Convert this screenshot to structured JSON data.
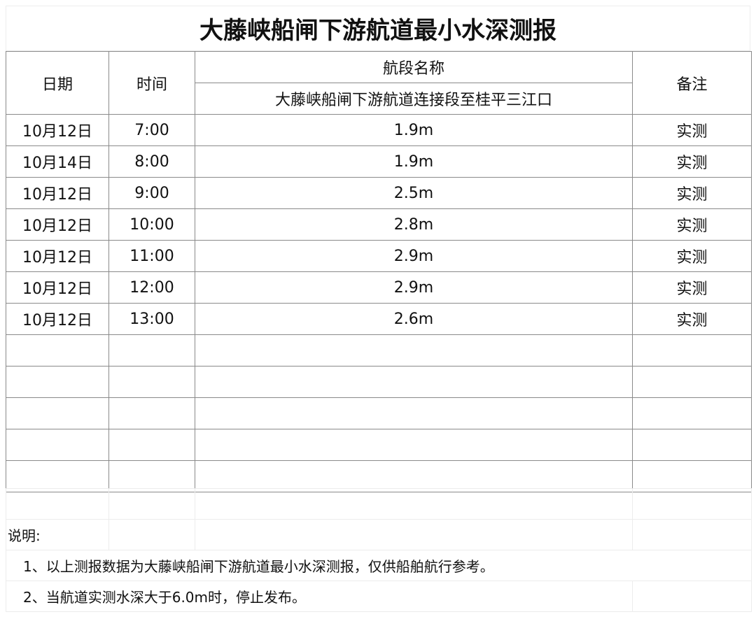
{
  "title": "大藤峡船闸下游航道最小水深测报",
  "header": {
    "date": "日期",
    "time": "时间",
    "section_name": "航段名称",
    "section_value": "大藤峡船闸下游航道连接段至桂平三江口",
    "remark": "备注"
  },
  "rows": [
    {
      "date": "10月12日",
      "time": "7:00",
      "depth": "1.9m",
      "remark": "实测"
    },
    {
      "date": "10月14日",
      "time": "8:00",
      "depth": "1.9m",
      "remark": "实测"
    },
    {
      "date": "10月12日",
      "time": "9:00",
      "depth": "2.5m",
      "remark": "实测"
    },
    {
      "date": "10月12日",
      "time": "10:00",
      "depth": "2.8m",
      "remark": "实测"
    },
    {
      "date": "10月12日",
      "time": "11:00",
      "depth": "2.9m",
      "remark": "实测"
    },
    {
      "date": "10月12日",
      "time": "12:00",
      "depth": "2.9m",
      "remark": "实测"
    },
    {
      "date": "10月12日",
      "time": "13:00",
      "depth": "2.6m",
      "remark": "实测"
    }
  ],
  "notes": {
    "heading": "说明:",
    "items": [
      "1、以上测报数据为大藤峡船闸下游航道最小水深测报，仅供船舶航行参考。",
      "2、当航道实测水深大于6.0m时，停止发布。"
    ]
  }
}
